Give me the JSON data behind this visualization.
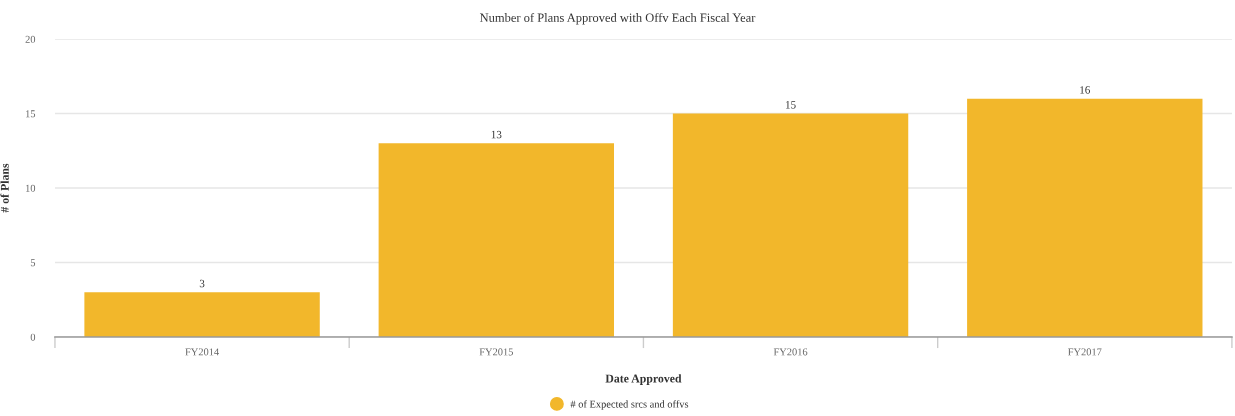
{
  "chart_data": {
    "type": "bar",
    "title": "Number of Plans Approved with Offv Each Fiscal Year",
    "xlabel": "Date Approved",
    "ylabel": "# of Plans",
    "categories": [
      "FY2014",
      "FY2015",
      "FY2016",
      "FY2017"
    ],
    "series": [
      {
        "name": "# of Expected srcs and offvs",
        "color": "#f2b72b",
        "values": [
          3,
          13,
          15,
          16
        ]
      }
    ],
    "ylim": [
      0,
      20
    ],
    "yticks": [
      0,
      5,
      10,
      15,
      20
    ],
    "grid": "y",
    "legend": "bottom",
    "data_labels": true
  }
}
